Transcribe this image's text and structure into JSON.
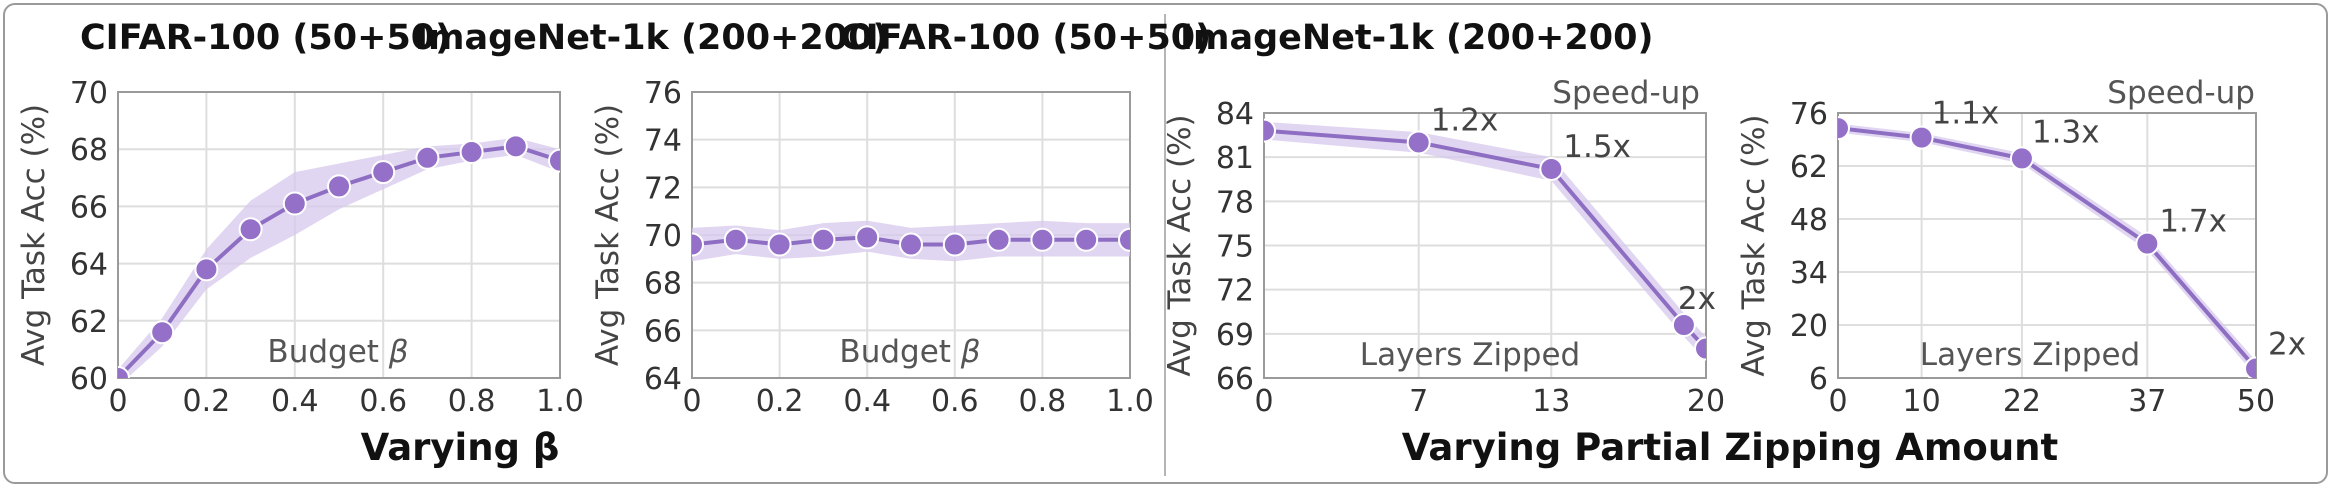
{
  "group_titles": {
    "left": "Varying β",
    "right": "Varying Partial Zipping Amount"
  },
  "colors": {
    "line": "#8e6ec2",
    "band": "#d7c8ec",
    "marker": "#9470c8",
    "marker_edge": "#ffffff",
    "grid": "#dedede",
    "axis": "#9a9a9a"
  },
  "chart_data": [
    {
      "type": "line",
      "title": "CIFAR-100 (50+50)",
      "ylabel": "Avg Task Acc (%)",
      "xlabel": "Budget β",
      "xlim": [
        0,
        1.0
      ],
      "ylim": [
        60,
        70
      ],
      "xticks": [
        "0",
        "0.2",
        "0.4",
        "0.6",
        "0.8",
        "1.0"
      ],
      "yticks": [
        "60",
        "62",
        "64",
        "66",
        "68",
        "70"
      ],
      "x": [
        0,
        0.1,
        0.2,
        0.3,
        0.4,
        0.5,
        0.6,
        0.7,
        0.8,
        0.9,
        1.0
      ],
      "y": [
        60.0,
        61.6,
        63.8,
        65.2,
        66.1,
        66.7,
        67.2,
        67.7,
        67.9,
        68.1,
        67.6
      ],
      "band_lo": [
        59.7,
        61.1,
        63.1,
        64.2,
        65.0,
        65.9,
        66.6,
        67.3,
        67.6,
        67.8,
        67.2
      ],
      "band_hi": [
        60.3,
        62.1,
        64.5,
        66.2,
        67.2,
        67.5,
        67.8,
        68.1,
        68.2,
        68.4,
        68.0
      ],
      "grid": true,
      "data_labels": []
    },
    {
      "type": "line",
      "title": "ImageNet-1k (200+200)",
      "ylabel": "Avg Task Acc (%)",
      "xlabel": "Budget β",
      "xlim": [
        0,
        1.0
      ],
      "ylim": [
        64,
        76
      ],
      "xticks": [
        "0",
        "0.2",
        "0.4",
        "0.6",
        "0.8",
        "1.0"
      ],
      "yticks": [
        "64",
        "66",
        "68",
        "70",
        "72",
        "74",
        "76"
      ],
      "x": [
        0,
        0.1,
        0.2,
        0.3,
        0.4,
        0.5,
        0.6,
        0.7,
        0.8,
        0.9,
        1.0
      ],
      "y": [
        69.6,
        69.8,
        69.6,
        69.8,
        69.9,
        69.6,
        69.6,
        69.8,
        69.8,
        69.8,
        69.8
      ],
      "band_lo": [
        68.9,
        69.2,
        69.0,
        69.1,
        69.3,
        69.0,
        68.9,
        69.1,
        69.1,
        69.1,
        69.1
      ],
      "band_hi": [
        70.3,
        70.4,
        70.2,
        70.5,
        70.6,
        70.3,
        70.4,
        70.5,
        70.6,
        70.5,
        70.5
      ],
      "grid": true,
      "data_labels": []
    },
    {
      "type": "line",
      "title": "CIFAR-100 (50+50)",
      "ylabel": "Avg Task Acc (%)",
      "xlabel": "Layers Zipped",
      "corner_label": "Speed-up",
      "xlim": [
        0,
        20
      ],
      "ylim": [
        66,
        84
      ],
      "xticks": [
        "0",
        "7",
        "13",
        "20"
      ],
      "xtick_values": [
        0,
        7,
        13,
        20
      ],
      "yticks": [
        "66",
        "69",
        "72",
        "75",
        "78",
        "81",
        "84"
      ],
      "x": [
        0,
        7,
        13,
        19,
        20
      ],
      "y": [
        82.8,
        82.0,
        80.2,
        69.6,
        68.0
      ],
      "band_lo": [
        82.2,
        81.3,
        79.4,
        68.8,
        67.2
      ],
      "band_hi": [
        83.4,
        82.7,
        81.0,
        70.4,
        68.8
      ],
      "grid": true,
      "data_labels": [
        {
          "text": "1.2x",
          "x": 7,
          "y": 82.0
        },
        {
          "text": "1.5x",
          "x": 13,
          "y": 80.2
        },
        {
          "text": "2x",
          "x": 19,
          "y": 69.6
        }
      ]
    },
    {
      "type": "line",
      "title": "ImageNet-1k (200+200)",
      "ylabel": "Avg Task Acc (%)",
      "xlabel": "Layers Zipped",
      "corner_label": "Speed-up",
      "xlim": [
        0,
        50
      ],
      "ylim": [
        6,
        76
      ],
      "xticks": [
        "0",
        "10",
        "22",
        "37",
        "50"
      ],
      "xtick_values": [
        0,
        10,
        22,
        37,
        50
      ],
      "yticks": [
        "6",
        "20",
        "34",
        "48",
        "62",
        "76"
      ],
      "x": [
        0,
        10,
        22,
        37,
        50
      ],
      "y": [
        72.0,
        69.5,
        64.0,
        41.5,
        8.5
      ],
      "band_lo": [
        70.8,
        68.3,
        62.6,
        39.7,
        6.5
      ],
      "band_hi": [
        73.2,
        70.7,
        65.4,
        43.3,
        10.5
      ],
      "grid": true,
      "data_labels": [
        {
          "text": "1.1x",
          "x": 10,
          "y": 69.5
        },
        {
          "text": "1.3x",
          "x": 22,
          "y": 64.0
        },
        {
          "text": "1.7x",
          "x": 37,
          "y": 41.5
        },
        {
          "text": "2x",
          "x": 50,
          "y": 8.5
        }
      ]
    }
  ]
}
